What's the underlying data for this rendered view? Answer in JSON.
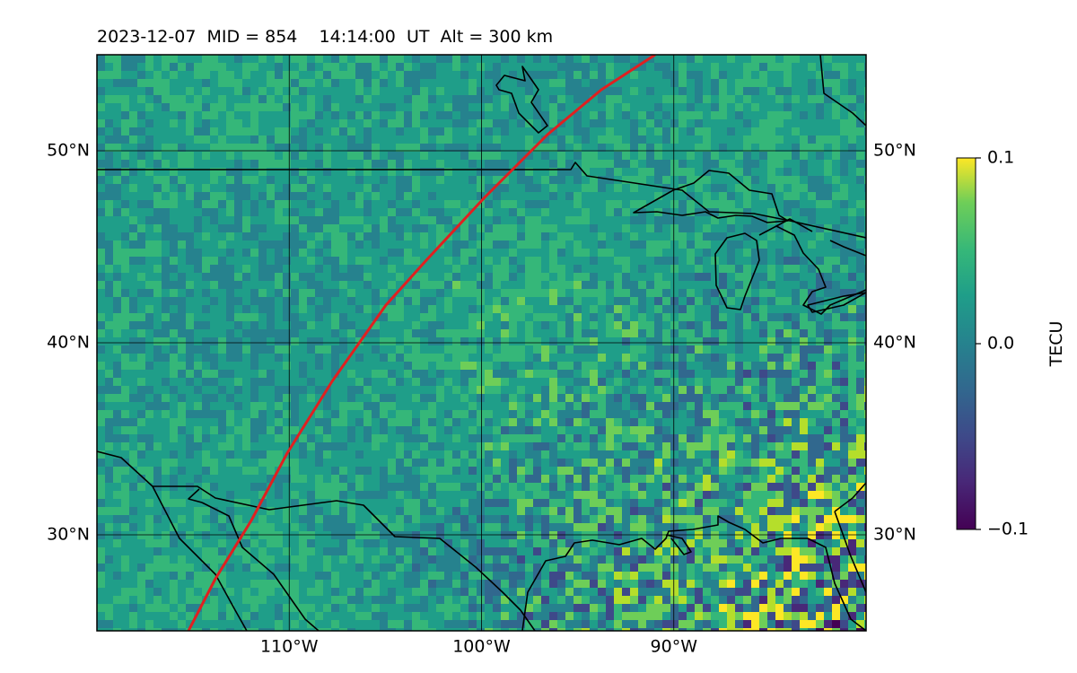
{
  "title": "2023-12-07  MID = 854    14:14:00  UT  Alt = 300 km",
  "map": {
    "lon_range": [
      -120,
      -80
    ],
    "lat_range": [
      25,
      55
    ],
    "lon_ticks": [
      {
        "value": -110,
        "label": "110°W"
      },
      {
        "value": -100,
        "label": "100°W"
      },
      {
        "value": -90,
        "label": "90°W"
      }
    ],
    "lat_ticks": [
      {
        "value": 50,
        "label": "50°N"
      },
      {
        "value": 40,
        "label": "40°N"
      },
      {
        "value": 30,
        "label": "30°N"
      }
    ],
    "grid": true,
    "field": "TEC perturbation",
    "colormap": "viridis",
    "track_color": "#e02020",
    "coastline_color": "#000000"
  },
  "colorbar": {
    "label": "TECU",
    "min": -0.1,
    "max": 0.1,
    "ticks": [
      {
        "value": 0.1,
        "label": "0.1"
      },
      {
        "value": 0.0,
        "label": "0.0"
      },
      {
        "value": -0.1,
        "label": "−0.1"
      }
    ]
  }
}
